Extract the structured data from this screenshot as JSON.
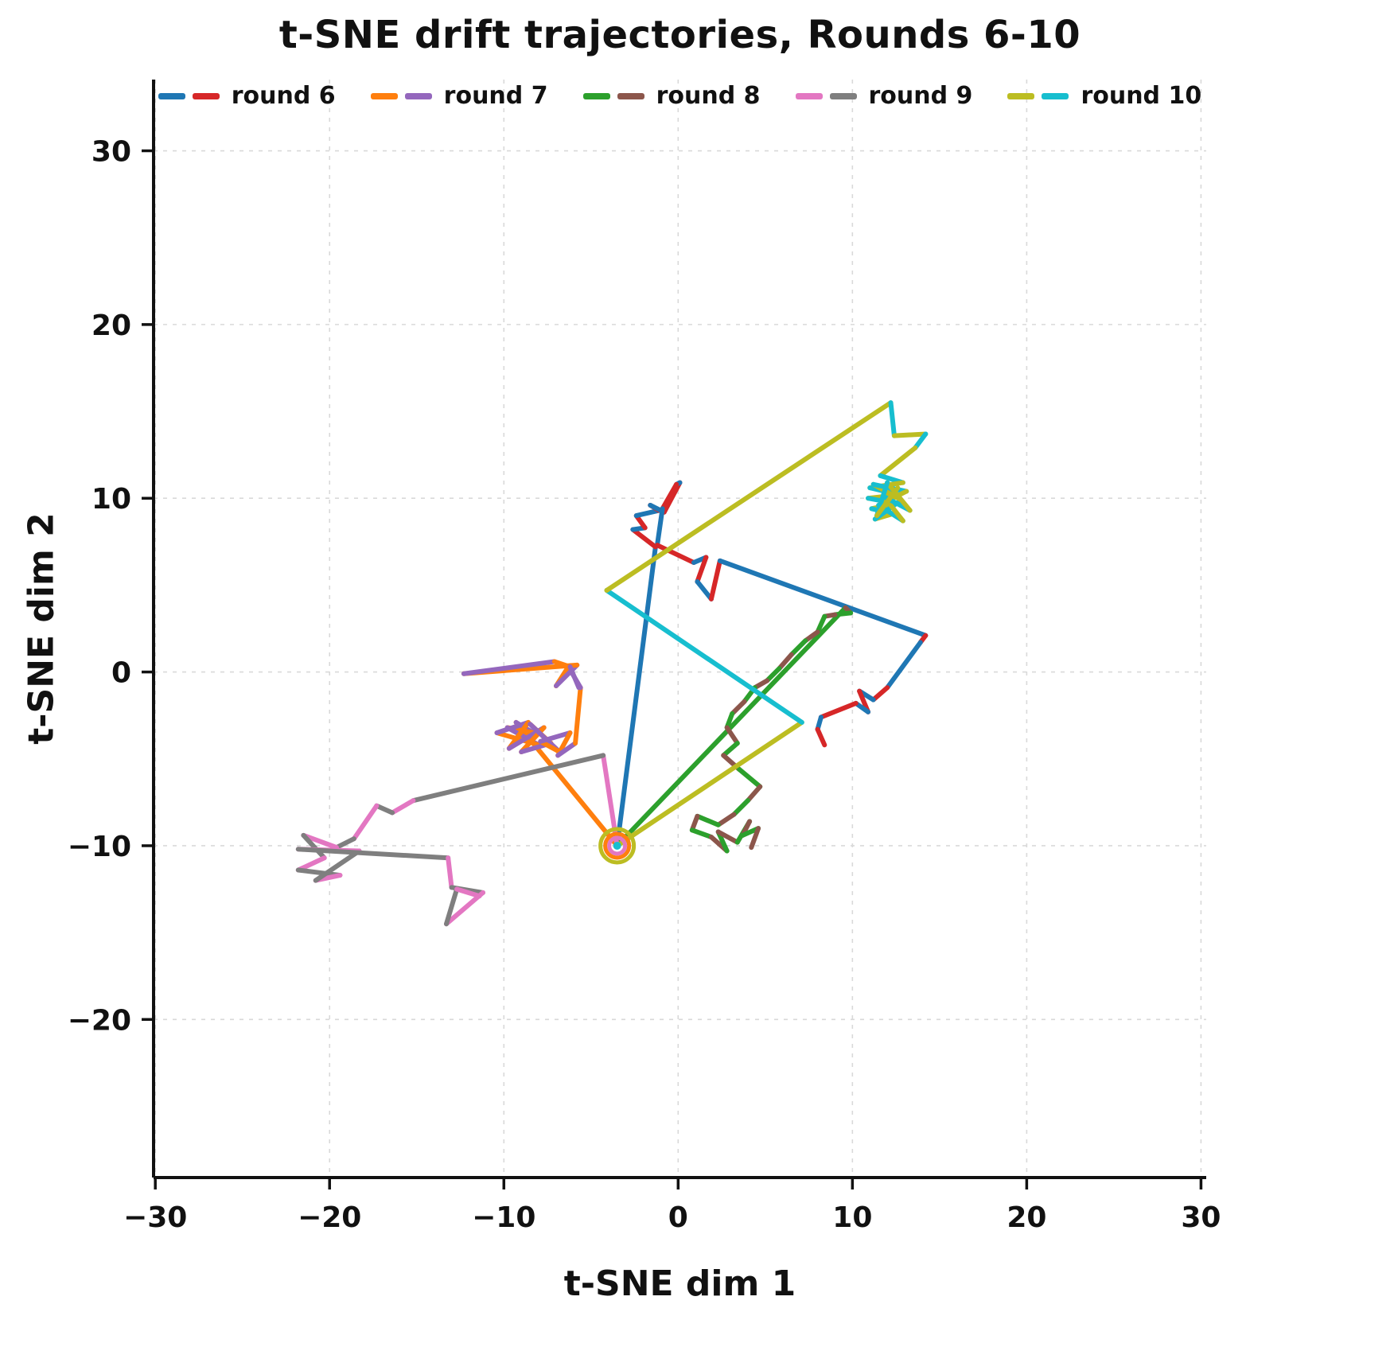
{
  "chart_data": {
    "type": "line",
    "title": "t-SNE drift trajectories, Rounds 6-10",
    "xlabel": "t-SNE dim 1",
    "ylabel": "t-SNE dim 2",
    "xlim": [
      -30.1,
      30.3
    ],
    "ylim": [
      -29.1,
      34.1
    ],
    "xticks": {
      "values": [
        -30,
        -20,
        -10,
        0,
        10,
        20,
        30
      ],
      "labels": [
        "−30",
        "−20",
        "−10",
        "0",
        "10",
        "20",
        "30"
      ]
    },
    "yticks": {
      "values": [
        -20,
        -10,
        0,
        10,
        20,
        30
      ],
      "labels": [
        "−20",
        "−10",
        "0",
        "10",
        "20",
        "30"
      ]
    },
    "grid": true,
    "grid_color": "#d9d9d9",
    "legend_position": "upper center",
    "line_width": 6,
    "anchor_marker": {
      "x": -3.5,
      "y": -10.0,
      "rings": [
        {
          "color": "#bcbd22",
          "r": 21
        },
        {
          "color": "#ff7f0e",
          "r": 15
        },
        {
          "color": "#e377c2",
          "r": 10
        }
      ],
      "dot": {
        "color": "#17becf",
        "r": 5
      }
    },
    "series": [
      {
        "name": "round 6",
        "colors": [
          "#1f77b4",
          "#d62728"
        ],
        "points": [
          [
            -3.5,
            -10.0
          ],
          [
            -1.3,
            7.2
          ],
          [
            -2.6,
            8.2
          ],
          [
            -1.9,
            8.3
          ],
          [
            -2.4,
            9.0
          ],
          [
            -1.1,
            9.3
          ],
          [
            -1.6,
            9.6
          ],
          [
            -0.8,
            9.2
          ],
          [
            0.1,
            10.9
          ],
          [
            -0.1,
            10.8
          ],
          [
            -0.9,
            9.4
          ],
          [
            -1.2,
            7.3
          ],
          [
            0.9,
            6.3
          ],
          [
            1.6,
            6.6
          ],
          [
            1.1,
            5.2
          ],
          [
            1.9,
            4.2
          ],
          [
            2.4,
            6.4
          ],
          [
            14.2,
            2.1
          ],
          [
            13.9,
            1.7
          ],
          [
            12.0,
            -0.9
          ],
          [
            11.2,
            -1.6
          ],
          [
            10.4,
            -1.1
          ],
          [
            10.9,
            -2.3
          ],
          [
            10.2,
            -1.8
          ],
          [
            8.2,
            -2.6
          ],
          [
            8.0,
            -3.3
          ],
          [
            8.4,
            -4.2
          ]
        ]
      },
      {
        "name": "round 7",
        "colors": [
          "#ff7f0e",
          "#9467bd"
        ],
        "points": [
          [
            -3.5,
            -10.0
          ],
          [
            -9.3,
            -2.9
          ],
          [
            -8.3,
            -3.5
          ],
          [
            -9.8,
            -3.2
          ],
          [
            -8.0,
            -4.2
          ],
          [
            -10.4,
            -3.5
          ],
          [
            -8.6,
            -2.9
          ],
          [
            -9.7,
            -4.4
          ],
          [
            -7.7,
            -3.2
          ],
          [
            -9.0,
            -4.6
          ],
          [
            -7.3,
            -4.1
          ],
          [
            -8.5,
            -3.0
          ],
          [
            -6.8,
            -4.6
          ],
          [
            -7.9,
            -4.0
          ],
          [
            -6.2,
            -3.5
          ],
          [
            -6.9,
            -4.8
          ],
          [
            -5.9,
            -4.1
          ],
          [
            -5.6,
            -0.9
          ],
          [
            -6.3,
            0.3
          ],
          [
            -7.0,
            -0.8
          ],
          [
            -5.8,
            0.4
          ],
          [
            -12.3,
            -0.1
          ],
          [
            -7.1,
            0.6
          ],
          [
            -6.2,
            0.3
          ],
          [
            -5.7,
            -0.9
          ]
        ]
      },
      {
        "name": "round 8",
        "colors": [
          "#2ca02c",
          "#8c564b"
        ],
        "points": [
          [
            -3.5,
            -10.0
          ],
          [
            9.6,
            3.7
          ],
          [
            9.9,
            3.4
          ],
          [
            9.0,
            3.3
          ],
          [
            8.4,
            3.2
          ],
          [
            8.0,
            2.3
          ],
          [
            7.3,
            1.8
          ],
          [
            6.5,
            1.0
          ],
          [
            5.8,
            0.2
          ],
          [
            5.1,
            -0.5
          ],
          [
            4.4,
            -0.9
          ],
          [
            3.8,
            -1.7
          ],
          [
            3.1,
            -2.4
          ],
          [
            2.8,
            -3.2
          ],
          [
            3.4,
            -4.1
          ],
          [
            2.6,
            -4.8
          ],
          [
            3.5,
            -5.6
          ],
          [
            4.7,
            -6.6
          ],
          [
            4.0,
            -7.4
          ],
          [
            3.2,
            -8.2
          ],
          [
            2.3,
            -8.8
          ],
          [
            1.1,
            -8.3
          ],
          [
            0.8,
            -9.1
          ],
          [
            1.9,
            -9.5
          ],
          [
            2.8,
            -10.3
          ],
          [
            2.3,
            -9.2
          ],
          [
            3.4,
            -9.8
          ],
          [
            4.1,
            -8.6
          ],
          [
            3.7,
            -9.4
          ],
          [
            4.6,
            -9.0
          ],
          [
            4.2,
            -10.1
          ]
        ]
      },
      {
        "name": "round 9",
        "colors": [
          "#e377c2",
          "#7f7f7f"
        ],
        "points": [
          [
            -3.5,
            -10.0
          ],
          [
            -4.3,
            -4.8
          ],
          [
            -15.2,
            -7.4
          ],
          [
            -16.4,
            -8.1
          ],
          [
            -17.3,
            -7.7
          ],
          [
            -18.6,
            -9.6
          ],
          [
            -19.6,
            -10.1
          ],
          [
            -21.5,
            -9.4
          ],
          [
            -20.3,
            -10.7
          ],
          [
            -21.8,
            -11.4
          ],
          [
            -19.4,
            -11.7
          ],
          [
            -20.8,
            -12.0
          ],
          [
            -18.3,
            -10.3
          ],
          [
            -21.8,
            -10.2
          ],
          [
            -13.2,
            -10.7
          ],
          [
            -13.0,
            -12.4
          ],
          [
            -11.2,
            -12.7
          ],
          [
            -13.3,
            -14.5
          ],
          [
            -12.7,
            -12.5
          ],
          [
            -11.4,
            -12.9
          ]
        ]
      },
      {
        "name": "round 10",
        "colors": [
          "#bcbd22",
          "#17becf"
        ],
        "points": [
          [
            -3.5,
            -10.0
          ],
          [
            7.1,
            -2.9
          ],
          [
            -4.1,
            4.7
          ],
          [
            12.2,
            15.5
          ],
          [
            12.4,
            13.6
          ],
          [
            14.2,
            13.7
          ],
          [
            13.6,
            12.9
          ],
          [
            11.6,
            11.3
          ],
          [
            12.9,
            10.9
          ],
          [
            11.0,
            10.6
          ],
          [
            12.7,
            10.2
          ],
          [
            10.9,
            10.0
          ],
          [
            12.5,
            9.7
          ],
          [
            11.1,
            9.4
          ],
          [
            12.3,
            9.1
          ],
          [
            11.3,
            8.8
          ],
          [
            12.8,
            9.9
          ],
          [
            11.2,
            10.8
          ],
          [
            13.1,
            10.4
          ],
          [
            11.5,
            9.6
          ],
          [
            12.9,
            8.7
          ],
          [
            11.8,
            10.1
          ],
          [
            13.3,
            9.3
          ],
          [
            12.0,
            10.9
          ],
          [
            11.4,
            9.0
          ],
          [
            12.6,
            10.6
          ]
        ]
      }
    ]
  }
}
